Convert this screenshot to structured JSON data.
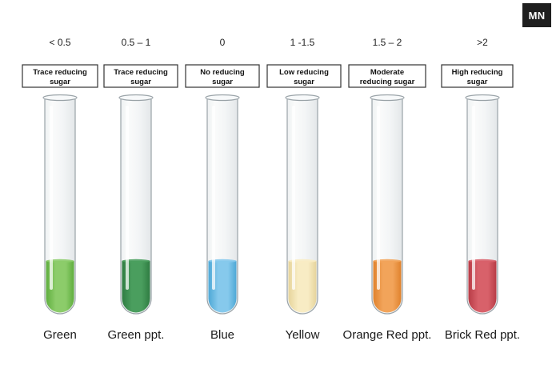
{
  "brand": {
    "badge": "MN"
  },
  "tubes": [
    {
      "range": "< 0.5",
      "label_line1": "Trace reducing",
      "label_line2": "sugar",
      "color_name": "Green",
      "liquid": "#8ccc6a",
      "liquid_dark": "#5fae3e"
    },
    {
      "range": "0.5 – 1",
      "label_line1": "Trace reducing",
      "label_line2": "sugar",
      "color_name": "Green ppt.",
      "liquid": "#4a9e5e",
      "liquid_dark": "#2f7c42"
    },
    {
      "range": "0",
      "label_line1": "No reducing",
      "label_line2": "sugar",
      "color_name": "Blue",
      "liquid": "#86c9ec",
      "liquid_dark": "#4ea8d6"
    },
    {
      "range": "1 -1.5",
      "label_line1": "Low reducing",
      "label_line2": "sugar",
      "color_name": "Yellow",
      "liquid": "#f8ecc4",
      "liquid_dark": "#e6d49b"
    },
    {
      "range": "1.5 – 2",
      "label_line1": "Moderate",
      "label_line2": "reducing sugar",
      "color_name": "Orange Red ppt.",
      "liquid": "#f2a45a",
      "liquid_dark": "#e0822c"
    },
    {
      "range": ">2",
      "label_line1": "High reducing",
      "label_line2": "sugar",
      "color_name": "Brick Red ppt.",
      "liquid": "#d8616a",
      "liquid_dark": "#b83c46"
    }
  ]
}
